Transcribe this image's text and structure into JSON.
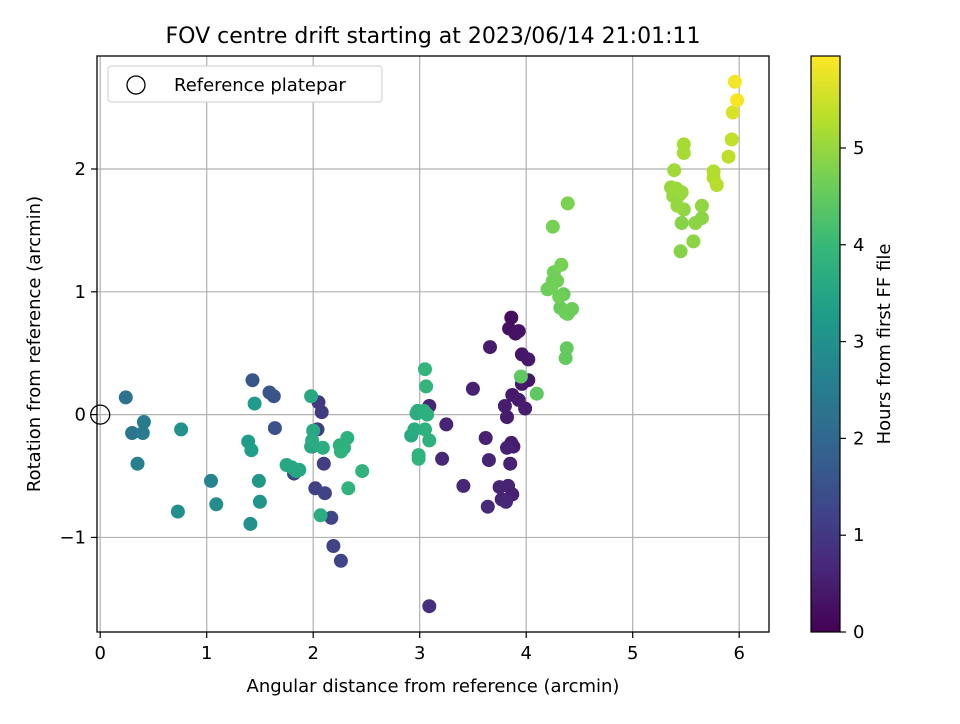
{
  "chart_data": {
    "type": "scatter",
    "title": "FOV centre drift starting at 2023/06/14 21:01:11",
    "xlabel": "Angular distance from reference (arcmin)",
    "ylabel": "Rotation from reference (arcmin)",
    "xlim": [
      -0.03,
      6.28
    ],
    "ylim": [
      -1.77,
      2.92
    ],
    "xticks": [
      0,
      1,
      2,
      3,
      4,
      5,
      6
    ],
    "yticks": [
      -1,
      0,
      1,
      2
    ],
    "ytick_labels": [
      "−1",
      "0",
      "1",
      "2"
    ],
    "grid": true,
    "legend": {
      "position": "top-left",
      "entries": [
        {
          "label": "Reference platepar",
          "marker": "open-circle"
        }
      ]
    },
    "reference_point": {
      "x": 0,
      "y": 0
    },
    "colorbar": {
      "label": "Hours from first FF file",
      "colormap": "viridis",
      "range": [
        0,
        5.95
      ],
      "ticks": [
        0,
        1,
        2,
        3,
        4,
        5
      ],
      "colors": [
        "#440154",
        "#482878",
        "#3e4989",
        "#31688e",
        "#26828e",
        "#1f9e89",
        "#35b779",
        "#6ece58",
        "#b5de2b",
        "#fde725"
      ]
    },
    "points": [
      [
        3.86,
        0.79,
        0.2
      ],
      [
        3.84,
        0.7,
        0.25
      ],
      [
        3.9,
        0.66,
        0.3
      ],
      [
        3.93,
        0.68,
        0.3
      ],
      [
        3.96,
        0.49,
        0.35
      ],
      [
        4.02,
        0.45,
        0.4
      ],
      [
        3.66,
        0.55,
        0.45
      ],
      [
        3.5,
        0.21,
        0.55
      ],
      [
        3.96,
        0.25,
        0.4
      ],
      [
        4.02,
        0.28,
        0.35
      ],
      [
        3.87,
        0.16,
        0.4
      ],
      [
        3.93,
        0.12,
        0.45
      ],
      [
        3.8,
        0.07,
        0.5
      ],
      [
        3.82,
        -0.02,
        0.45
      ],
      [
        3.99,
        0.05,
        0.5
      ],
      [
        3.09,
        0.07,
        0.6
      ],
      [
        3.25,
        -0.08,
        0.6
      ],
      [
        3.62,
        -0.19,
        0.55
      ],
      [
        3.86,
        -0.23,
        0.5
      ],
      [
        3.88,
        -0.26,
        0.5
      ],
      [
        3.82,
        -0.27,
        0.55
      ],
      [
        3.65,
        -0.37,
        0.6
      ],
      [
        3.85,
        -0.4,
        0.55
      ],
      [
        3.21,
        -0.36,
        0.65
      ],
      [
        3.41,
        -0.58,
        0.65
      ],
      [
        3.75,
        -0.59,
        0.6
      ],
      [
        3.83,
        -0.58,
        0.6
      ],
      [
        3.87,
        -0.65,
        0.55
      ],
      [
        3.77,
        -0.69,
        0.6
      ],
      [
        3.81,
        -0.71,
        0.65
      ],
      [
        3.64,
        -0.75,
        0.7
      ],
      [
        3.09,
        -1.56,
        0.8
      ],
      [
        2.05,
        0.1,
        1.0
      ],
      [
        2.08,
        0.02,
        1.05
      ],
      [
        2.04,
        -0.12,
        1.05
      ],
      [
        2.1,
        -0.4,
        1.1
      ],
      [
        1.99,
        -0.26,
        1.1
      ],
      [
        2.02,
        -0.6,
        1.15
      ],
      [
        2.11,
        -0.64,
        1.2
      ],
      [
        2.17,
        -0.84,
        1.2
      ],
      [
        2.19,
        -1.07,
        1.2
      ],
      [
        2.26,
        -1.19,
        1.25
      ],
      [
        1.82,
        -0.48,
        1.3
      ],
      [
        1.63,
        0.15,
        1.55
      ],
      [
        1.59,
        0.18,
        1.6
      ],
      [
        1.43,
        0.28,
        1.6
      ],
      [
        1.64,
        -0.11,
        1.5
      ],
      [
        0.24,
        0.14,
        2.2
      ],
      [
        0.3,
        -0.15,
        2.35
      ],
      [
        0.41,
        -0.06,
        2.5
      ],
      [
        0.4,
        -0.15,
        2.5
      ],
      [
        0.35,
        -0.4,
        2.6
      ],
      [
        1.04,
        -0.54,
        2.7
      ],
      [
        1.09,
        -0.73,
        2.9
      ],
      [
        0.73,
        -0.79,
        2.95
      ],
      [
        1.41,
        -0.89,
        3.0
      ],
      [
        0.76,
        -0.12,
        3.05
      ],
      [
        1.5,
        -0.71,
        3.1
      ],
      [
        1.49,
        -0.54,
        3.15
      ],
      [
        1.45,
        0.09,
        3.2
      ],
      [
        1.39,
        -0.22,
        3.25
      ],
      [
        1.42,
        -0.29,
        3.3
      ],
      [
        1.75,
        -0.41,
        3.55
      ],
      [
        1.8,
        -0.43,
        3.55
      ],
      [
        1.84,
        -0.46,
        3.55
      ],
      [
        1.87,
        -0.45,
        3.55
      ],
      [
        1.98,
        -0.26,
        3.6
      ],
      [
        2.0,
        -0.13,
        3.6
      ],
      [
        1.98,
        0.15,
        3.6
      ],
      [
        1.99,
        -0.21,
        3.65
      ],
      [
        2.09,
        -0.27,
        3.7
      ],
      [
        2.07,
        -0.82,
        3.7
      ],
      [
        2.25,
        -0.25,
        3.75
      ],
      [
        2.26,
        -0.3,
        3.8
      ],
      [
        2.29,
        -0.27,
        3.8
      ],
      [
        2.32,
        -0.19,
        3.8
      ],
      [
        2.33,
        -0.6,
        3.85
      ],
      [
        2.46,
        -0.46,
        3.85
      ],
      [
        2.92,
        -0.17,
        3.6
      ],
      [
        2.95,
        -0.12,
        3.65
      ],
      [
        2.97,
        0.01,
        3.7
      ],
      [
        2.98,
        0.03,
        3.7
      ],
      [
        3.04,
        0.03,
        3.75
      ],
      [
        3.07,
        0.0,
        3.75
      ],
      [
        3.05,
        -0.12,
        3.8
      ],
      [
        3.09,
        -0.21,
        3.8
      ],
      [
        2.99,
        -0.33,
        3.85
      ],
      [
        2.99,
        -0.36,
        3.85
      ],
      [
        3.05,
        0.37,
        3.9
      ],
      [
        3.06,
        0.23,
        3.9
      ],
      [
        3.95,
        0.31,
        4.45
      ],
      [
        4.1,
        0.17,
        4.45
      ],
      [
        4.37,
        0.46,
        4.5
      ],
      [
        4.38,
        0.54,
        4.5
      ],
      [
        4.32,
        0.87,
        4.55
      ],
      [
        4.35,
        0.98,
        4.55
      ],
      [
        4.37,
        0.83,
        4.6
      ],
      [
        4.39,
        0.82,
        4.6
      ],
      [
        4.43,
        0.86,
        4.6
      ],
      [
        4.2,
        1.02,
        4.6
      ],
      [
        4.24,
        1.05,
        4.65
      ],
      [
        4.25,
        1.09,
        4.65
      ],
      [
        4.29,
        1.09,
        4.65
      ],
      [
        4.31,
        0.96,
        4.65
      ],
      [
        4.26,
        1.16,
        4.65
      ],
      [
        4.33,
        1.22,
        4.7
      ],
      [
        4.25,
        1.53,
        4.7
      ],
      [
        4.39,
        1.72,
        4.75
      ],
      [
        5.45,
        1.33,
        4.85
      ],
      [
        5.46,
        1.56,
        4.85
      ],
      [
        5.57,
        1.41,
        4.9
      ],
      [
        5.59,
        1.56,
        4.9
      ],
      [
        5.65,
        1.6,
        4.9
      ],
      [
        5.65,
        1.7,
        4.95
      ],
      [
        5.48,
        1.67,
        4.95
      ],
      [
        5.42,
        1.7,
        5.0
      ],
      [
        5.38,
        1.78,
        5.0
      ],
      [
        5.44,
        1.79,
        5.0
      ],
      [
        5.36,
        1.85,
        5.0
      ],
      [
        5.41,
        1.84,
        5.05
      ],
      [
        5.46,
        1.81,
        5.05
      ],
      [
        5.39,
        1.99,
        5.1
      ],
      [
        5.48,
        2.13,
        5.15
      ],
      [
        5.48,
        2.2,
        5.15
      ],
      [
        5.76,
        1.98,
        5.25
      ],
      [
        5.76,
        1.93,
        5.25
      ],
      [
        5.79,
        1.87,
        5.3
      ],
      [
        5.9,
        2.1,
        5.35
      ],
      [
        5.93,
        2.24,
        5.4
      ],
      [
        5.94,
        2.46,
        5.6
      ],
      [
        5.96,
        2.71,
        5.85
      ],
      [
        5.98,
        2.56,
        5.9
      ]
    ]
  }
}
